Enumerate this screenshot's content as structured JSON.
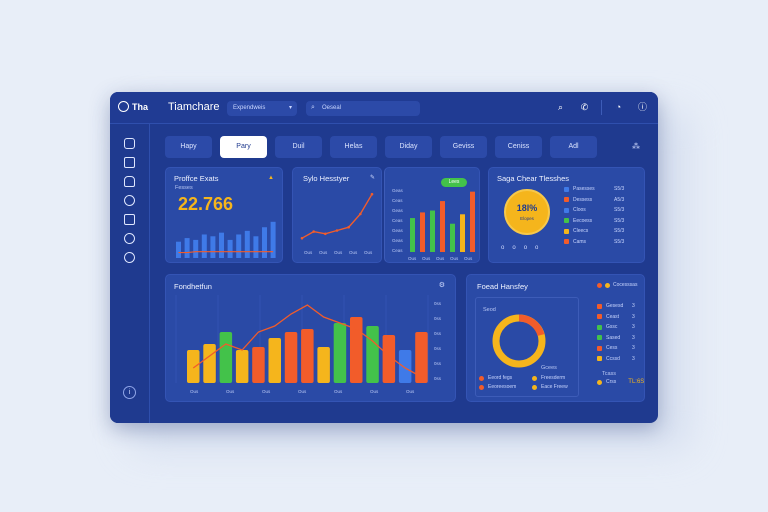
{
  "app": {
    "logo_text": "Tha",
    "title": "Tiamchare"
  },
  "topbar": {
    "select_value": "Expendweis",
    "search_placeholder": "Oeseal",
    "icons": [
      "search-icon",
      "phone-icon",
      "history-icon",
      "info-icon"
    ]
  },
  "sidebar": {
    "icons": [
      "dashboard-icon",
      "chart-icon",
      "car-icon",
      "globe-icon",
      "share-icon",
      "compass-icon",
      "settings-icon"
    ],
    "bottom_icon": "help-icon"
  },
  "tabs": [
    "Hapy",
    "Pary",
    "Duil",
    "Helas",
    "Diday",
    "Geviss",
    "Ceniss",
    "Adl"
  ],
  "active_tab": 1,
  "cards": {
    "profits": {
      "title": "Proffce Exats",
      "subtitle": "Fesses",
      "value": "22.766",
      "chart_data": {
        "type": "bar",
        "values": [
          18,
          22,
          20,
          26,
          24,
          28,
          20,
          26,
          30,
          24,
          34,
          40
        ],
        "line": [
          6,
          6,
          7,
          7,
          7,
          7,
          7,
          7,
          7,
          7,
          7,
          7
        ]
      }
    },
    "sales": {
      "title": "Sylo Hesstyer",
      "x_labels": [
        "Ous",
        "Ous",
        "Ous",
        "Ous",
        "Ous"
      ],
      "chart_data": {
        "type": "line",
        "values": [
          8,
          14,
          12,
          15,
          18,
          30,
          48
        ]
      }
    },
    "growth": {
      "pill_label": "Lees",
      "y_labels": [
        "Geas",
        "Ceas",
        "Geas",
        "Ceas",
        "Geas",
        "Geas",
        "Ceas"
      ],
      "x_labels": [
        "Ous",
        "Ous",
        "Ous",
        "Ous",
        "Ous"
      ],
      "chart_data": {
        "type": "bar",
        "values": [
          36,
          42,
          44,
          54,
          30,
          40,
          64
        ],
        "colors": [
          "#43c24a",
          "#f25c2a",
          "#43c24a",
          "#f25c2a",
          "#43c24a",
          "#f5b51c",
          "#f25c2a"
        ]
      }
    },
    "donut_small": {
      "title": "Saga Chear Tlesshes",
      "center_value": "18l%",
      "center_sub": "Elopes",
      "legend": [
        {
          "label": "Pasesses",
          "color": "#3f7ae8",
          "value": "S5/3"
        },
        {
          "label": "Dessess",
          "color": "#f25c2a",
          "value": "A5/3"
        },
        {
          "label": "Cloos",
          "color": "#3f7ae8",
          "value": "S5/3"
        },
        {
          "label": "Eecoess",
          "color": "#43c24a",
          "value": "S5/3"
        },
        {
          "label": "Cleecs",
          "color": "#f5b51c",
          "value": "S5/3"
        },
        {
          "label": "Cams",
          "color": "#f25c2a",
          "value": "S5/3"
        }
      ],
      "bottom_icons": [
        "o",
        "o",
        "o",
        "o"
      ]
    },
    "bottom_bar": {
      "title": "Fondhetfun",
      "y_labels": [
        "0ss",
        "0ss",
        "0ss",
        "0ss",
        "0ss",
        "0ss"
      ],
      "x_labels": [
        "Ous",
        "Ous",
        "Ous",
        "Ous",
        "Ous",
        "Ous",
        "Ous"
      ],
      "chart_data": {
        "type": "bar",
        "values": [
          22,
          26,
          34,
          22,
          24,
          30,
          34,
          36,
          24,
          40,
          44,
          38,
          32,
          22,
          34
        ],
        "colors": [
          "#f5b51c",
          "#f5b51c",
          "#43c24a",
          "#f5b51c",
          "#f25c2a",
          "#f5b51c",
          "#f25c2a",
          "#f25c2a",
          "#f5b51c",
          "#43c24a",
          "#f25c2a",
          "#43c24a",
          "#f25c2a",
          "#3f7ae8",
          "#f25c2a"
        ],
        "line": [
          10,
          18,
          26,
          22,
          34,
          38,
          46,
          52,
          44,
          40,
          36,
          28,
          18,
          10,
          4
        ]
      }
    },
    "donut_large": {
      "title": "Foead Hansfey",
      "side_label": "Cocesssas",
      "center_label": "Gcees",
      "inner_label": "Seod",
      "legend_left": [
        {
          "label": "Eeord fegs",
          "color": "#f25c2a"
        },
        {
          "label": "Eeoreesoem",
          "color": "#f25c2a"
        }
      ],
      "legend_right": [
        {
          "label": "Freesderm",
          "color": "#f5b51c"
        },
        {
          "label": "Eace Freew",
          "color": "#f5b51c"
        }
      ],
      "list": [
        {
          "label": "Gesesd",
          "color": "#f25c2a",
          "value": "3"
        },
        {
          "label": "Ceast",
          "color": "#f25c2a",
          "value": "3"
        },
        {
          "label": "Gssc",
          "color": "#43c24a",
          "value": "3"
        },
        {
          "label": "Sased",
          "color": "#43c24a",
          "value": "3"
        },
        {
          "label": "Cess",
          "color": "#f25c2a",
          "value": "3"
        },
        {
          "label": "Ccssd",
          "color": "#f5b51c",
          "value": "3"
        }
      ],
      "footer_sub": "Tcass",
      "footer_left": "Crss",
      "footer_value": "TL:6S"
    }
  }
}
